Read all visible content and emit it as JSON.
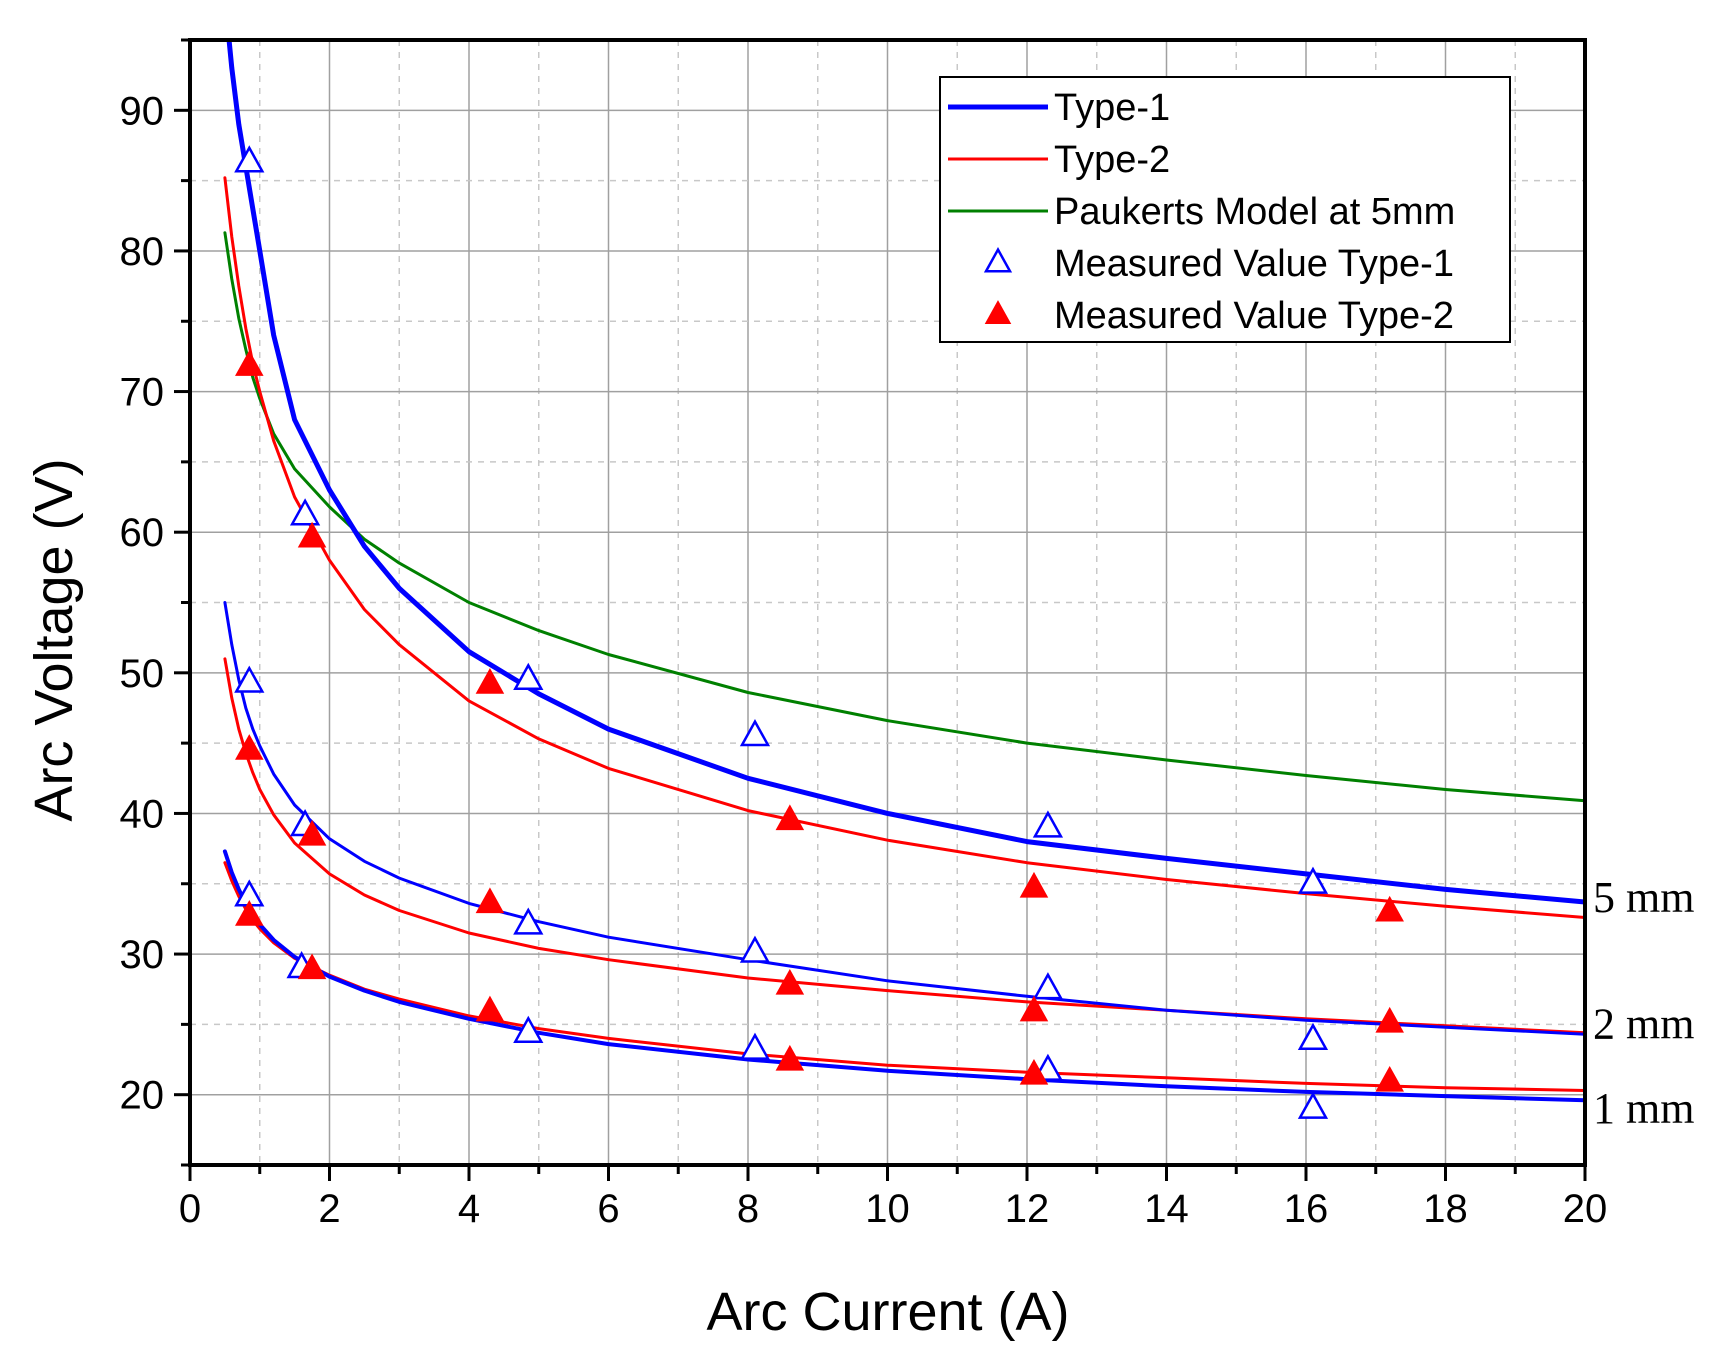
{
  "chart_data": {
    "type": "line",
    "title": "",
    "xlabel": "Arc Current (A)",
    "ylabel": "Arc Voltage (V)",
    "xlim": [
      0,
      20
    ],
    "ylim": [
      15,
      95
    ],
    "x_ticks": [
      "0",
      "2",
      "4",
      "6",
      "8",
      "10",
      "12",
      "14",
      "16",
      "18",
      "20"
    ],
    "y_ticks": [
      "20",
      "30",
      "40",
      "50",
      "60",
      "70",
      "80",
      "90"
    ],
    "x_tick_values": [
      0,
      2,
      4,
      6,
      8,
      10,
      12,
      14,
      16,
      18,
      20
    ],
    "y_tick_values": [
      20,
      30,
      40,
      50,
      60,
      70,
      80,
      90
    ],
    "grid": true,
    "legend": {
      "position": "top-right",
      "entries": [
        {
          "label": "Type-1",
          "kind": "line",
          "color": "#0000ff"
        },
        {
          "label": "Type-2",
          "kind": "line",
          "color": "#ff0000"
        },
        {
          "label": "Paukerts Model at 5mm",
          "kind": "line",
          "color": "#008000"
        },
        {
          "label": "Measured Value Type-1",
          "kind": "open-triangle",
          "color": "#0000ff"
        },
        {
          "label": "Measured Value Type-2",
          "kind": "filled-triangle",
          "color": "#ff0000"
        }
      ]
    },
    "curves": [
      {
        "name": "Type-1 5 mm",
        "group": "Type-1",
        "color": "#0000ff",
        "width": 5,
        "x": [
          0.52,
          0.6,
          0.7,
          0.8,
          0.9,
          1.0,
          1.2,
          1.5,
          2.0,
          2.5,
          3.0,
          4.0,
          5.0,
          6.0,
          8.0,
          10.0,
          12.0,
          14.0,
          16.0,
          18.0,
          20.0
        ],
        "y": [
          97,
          93,
          89,
          86,
          83,
          80,
          74,
          68,
          63,
          59,
          56,
          51.5,
          48.5,
          46,
          42.5,
          40,
          38,
          36.8,
          35.7,
          34.6,
          33.7
        ]
      },
      {
        "name": "Type-2 5 mm",
        "group": "Type-2",
        "color": "#ff0000",
        "width": 3,
        "x": [
          0.5,
          0.6,
          0.7,
          0.8,
          0.9,
          1.0,
          1.2,
          1.5,
          2.0,
          2.5,
          3.0,
          4.0,
          5.0,
          6.0,
          8.0,
          10.0,
          12.0,
          14.0,
          16.0,
          18.0,
          20.0
        ],
        "y": [
          85.2,
          81,
          77.5,
          74.5,
          72,
          70,
          66.5,
          62.5,
          58,
          54.5,
          52,
          48,
          45.3,
          43.2,
          40.2,
          38.1,
          36.5,
          35.3,
          34.3,
          33.4,
          32.6
        ]
      },
      {
        "name": "Paukerts Model at 5mm",
        "group": "Paukerts Model at 5mm",
        "color": "#008000",
        "width": 3,
        "x": [
          0.5,
          0.6,
          0.7,
          0.8,
          0.9,
          1.0,
          1.2,
          1.5,
          2.0,
          2.5,
          3.0,
          4.0,
          5.0,
          6.0,
          8.0,
          10.0,
          12.0,
          14.0,
          16.0,
          18.0,
          20.0
        ],
        "y": [
          81.3,
          78,
          75.2,
          73,
          71,
          69.5,
          67,
          64.5,
          61.8,
          59.5,
          57.8,
          55,
          53,
          51.3,
          48.6,
          46.6,
          45,
          43.8,
          42.7,
          41.7,
          40.9
        ]
      },
      {
        "name": "Type-1 2 mm",
        "group": "Type-1",
        "color": "#0000ff",
        "width": 3,
        "x": [
          0.5,
          0.6,
          0.7,
          0.8,
          0.9,
          1.0,
          1.2,
          1.5,
          2.0,
          2.5,
          3.0,
          4.0,
          5.0,
          6.0,
          8.0,
          10.0,
          12.0,
          14.0,
          16.0,
          18.0,
          20.0
        ],
        "y": [
          55,
          52,
          49.5,
          47.5,
          46,
          44.8,
          42.8,
          40.6,
          38.2,
          36.6,
          35.4,
          33.6,
          32.3,
          31.2,
          29.6,
          28.1,
          27,
          26,
          25.3,
          24.8,
          24.3
        ]
      },
      {
        "name": "Type-2 2 mm",
        "group": "Type-2",
        "color": "#ff0000",
        "width": 3,
        "x": [
          0.5,
          0.6,
          0.7,
          0.8,
          0.9,
          1.0,
          1.2,
          1.5,
          2.0,
          2.5,
          3.0,
          4.0,
          5.0,
          6.0,
          8.0,
          10.0,
          12.0,
          14.0,
          16.0,
          18.0,
          20.0
        ],
        "y": [
          51,
          48.2,
          46,
          44.3,
          42.9,
          41.7,
          39.9,
          37.9,
          35.7,
          34.2,
          33.1,
          31.5,
          30.4,
          29.6,
          28.3,
          27.4,
          26.6,
          26,
          25.4,
          24.9,
          24.4
        ]
      },
      {
        "name": "Type-1 1 mm",
        "group": "Type-1",
        "color": "#0000ff",
        "width": 4,
        "x": [
          0.5,
          0.6,
          0.7,
          0.8,
          0.9,
          1.0,
          1.2,
          1.5,
          2.0,
          2.5,
          3.0,
          4.0,
          5.0,
          6.0,
          8.0,
          10.0,
          12.0,
          14.0,
          16.0,
          18.0,
          20.0
        ],
        "y": [
          37.3,
          35.8,
          34.6,
          33.6,
          32.8,
          32.1,
          31,
          29.8,
          28.4,
          27.4,
          26.6,
          25.4,
          24.4,
          23.6,
          22.5,
          21.7,
          21.1,
          20.6,
          20.2,
          19.9,
          19.6
        ]
      },
      {
        "name": "Type-2 1 mm",
        "group": "Type-2",
        "color": "#ff0000",
        "width": 3,
        "x": [
          0.5,
          0.6,
          0.7,
          0.8,
          0.9,
          1.0,
          1.2,
          1.5,
          2.0,
          2.5,
          3.0,
          4.0,
          5.0,
          6.0,
          8.0,
          10.0,
          12.0,
          14.0,
          16.0,
          18.0,
          20.0
        ],
        "y": [
          36.5,
          35.2,
          34.1,
          33.2,
          32.4,
          31.8,
          30.8,
          29.7,
          28.5,
          27.5,
          26.8,
          25.6,
          24.7,
          24,
          22.9,
          22.1,
          21.6,
          21.2,
          20.8,
          20.5,
          20.3
        ]
      }
    ],
    "measured": [
      {
        "name": "Measured Value Type-1",
        "marker": "open-triangle",
        "color": "#0000ff",
        "x": [
          0.85,
          1.65,
          4.85,
          8.1,
          12.3,
          16.1,
          0.85,
          1.65,
          4.85,
          8.1,
          12.3,
          16.1,
          0.85,
          1.6,
          4.85,
          8.1,
          12.3,
          16.1
        ],
        "y": [
          86.3,
          61.2,
          49.5,
          45.5,
          39,
          35,
          49.3,
          39.1,
          32.1,
          30.1,
          27.5,
          23.9,
          34.1,
          29,
          24.4,
          23.2,
          21.7,
          19
        ]
      },
      {
        "name": "Measured Value Type-2",
        "marker": "filled-triangle",
        "color": "#ff0000",
        "x": [
          0.85,
          1.75,
          4.3,
          8.6,
          12.1,
          17.2,
          0.85,
          1.75,
          4.3,
          8.6,
          12.1,
          17.2,
          0.85,
          1.75,
          4.3,
          8.6,
          12.1,
          17.2
        ],
        "y": [
          71.8,
          59.6,
          49.2,
          39.5,
          34.7,
          33,
          44.5,
          38.4,
          33.6,
          27.8,
          25.9,
          25.1,
          32.7,
          28.9,
          25.9,
          22.4,
          21.4,
          20.9
        ]
      }
    ],
    "annotations": [
      {
        "text": "5 mm",
        "anchor_y": 34
      },
      {
        "text": "2 mm",
        "anchor_y": 25
      },
      {
        "text": "1 mm",
        "anchor_y": 19
      }
    ]
  }
}
